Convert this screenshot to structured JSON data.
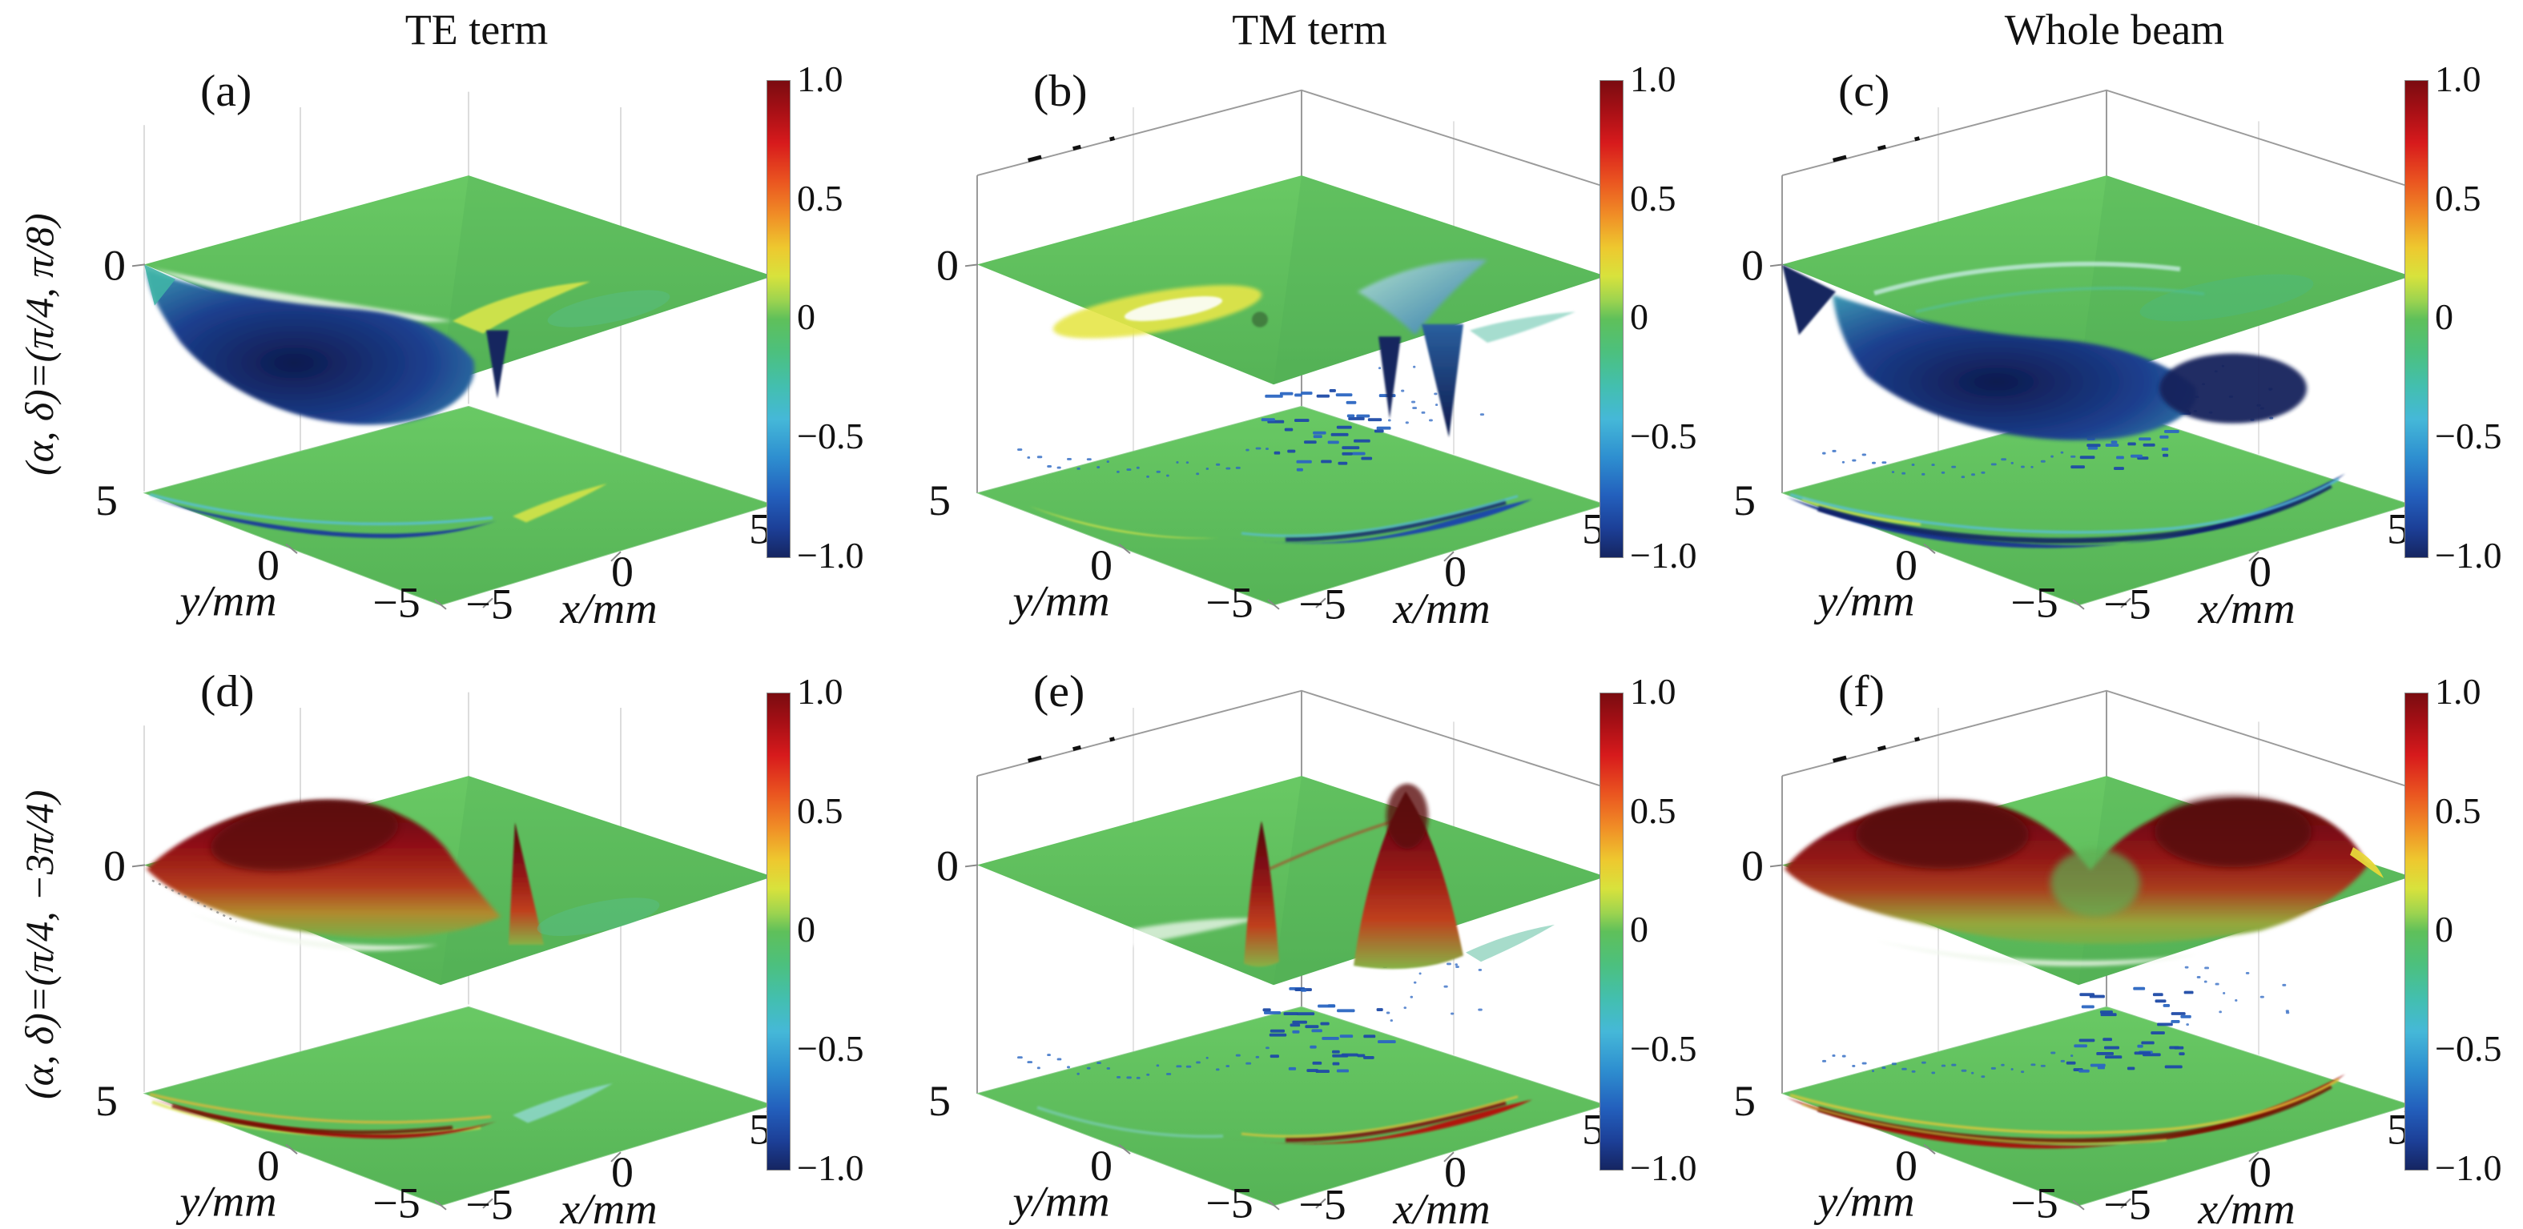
{
  "figure": {
    "column_titles": [
      "TE term",
      "TM term",
      "Whole beam"
    ],
    "row_labels": [
      "(α, δ)=(π/4, π/8)",
      "(α, δ)=(π/4, −3π/4)"
    ],
    "panel_letters": [
      "(a)",
      "(b)",
      "(c)",
      "(d)",
      "(e)",
      "(f)"
    ]
  },
  "axes": {
    "z_tick": "0",
    "y_ticks": [
      "5",
      "0",
      "−5"
    ],
    "x_ticks": [
      "−5",
      "0",
      "5"
    ],
    "y_label": "y/mm",
    "x_label": "x/mm",
    "colorbar_ticks": [
      "1.0",
      "0.5",
      "0",
      "−0.5",
      "−1.0"
    ]
  },
  "colors": {
    "surface_green": "#5fc05a",
    "negative_blue": "#16255e",
    "positive_red": "#8f1315",
    "quiver_blue": "#2b66c2",
    "colormap": "jet"
  },
  "chart_data": [
    {
      "panel": "(a)",
      "column": "TE term",
      "row_condition": "(α, δ)=(π/4, π/8)",
      "type": "3d-surface-with-projection",
      "x_axis": {
        "label": "x/mm",
        "range": [
          -5,
          5
        ],
        "ticks": [
          -5,
          0,
          5
        ]
      },
      "y_axis": {
        "label": "y/mm",
        "range": [
          -5,
          5
        ],
        "ticks": [
          5,
          0,
          -5
        ]
      },
      "z_tick": 0,
      "value_range": [
        -1,
        1
      ],
      "colorbar_ticks": [
        1.0,
        0.5,
        0,
        -0.5,
        -1.0
      ],
      "colormap": "jet",
      "surface_summary": "flat near 0 (green) with a broad negative lobe reaching about -1 (dark blue) over -4<x<0, a narrow negative spike near the origin, and a weak positive yellow ridge just right of center",
      "projection_summary": "narrow dark-blue negative crescent running from (x=-5, y=5) toward the origin; short yellow positive arc for x>0",
      "quiver_scatter": false
    },
    {
      "panel": "(b)",
      "column": "TM term",
      "row_condition": "(α, δ)=(π/4, π/8)",
      "type": "3d-surface-with-projection",
      "x_axis": {
        "label": "x/mm",
        "range": [
          -5,
          5
        ],
        "ticks": [
          -5,
          0,
          5
        ]
      },
      "y_axis": {
        "label": "y/mm",
        "range": [
          -5,
          5
        ],
        "ticks": [
          5,
          0,
          -5
        ]
      },
      "z_tick": 0,
      "value_range": [
        -1,
        1
      ],
      "colorbar_ticks": [
        1.0,
        0.5,
        0,
        -0.5,
        -1.0
      ],
      "colormap": "jet",
      "surface_summary": "flat near 0 with two sharp negative spikes reaching about -1 (dark blue) just right of center, a shallow blue trough arcing right, and a weak positive yellow glow left of center",
      "projection_summary": "dark-blue negative crescent right of center curving toward +x; weak yellow positive arc on the left",
      "quiver_scatter": true
    },
    {
      "panel": "(c)",
      "column": "Whole beam",
      "row_condition": "(α, δ)=(π/4, π/8)",
      "type": "3d-surface-with-projection",
      "x_axis": {
        "label": "x/mm",
        "range": [
          -5,
          5
        ],
        "ticks": [
          -5,
          0,
          5
        ]
      },
      "y_axis": {
        "label": "y/mm",
        "range": [
          -5,
          5
        ],
        "ticks": [
          5,
          0,
          -5
        ]
      },
      "z_tick": 0,
      "value_range": [
        -1,
        1
      ],
      "colorbar_ticks": [
        1.0,
        0.5,
        0,
        -0.5,
        -1.0
      ],
      "colormap": "jet",
      "surface_summary": "flat near 0 with one broad two-lobed negative bowl reaching about -1 (dark blue) across the center; shallow cyan valley arcs cross the surface",
      "projection_summary": "single long dark-blue negative crescent sweeping from (x=-5, y=5) across the plane toward x=5",
      "quiver_scatter": true
    },
    {
      "panel": "(d)",
      "column": "TE term",
      "row_condition": "(α, δ)=(π/4, −3π/4)",
      "type": "3d-surface-with-projection",
      "x_axis": {
        "label": "x/mm",
        "range": [
          -5,
          5
        ],
        "ticks": [
          -5,
          0,
          5
        ]
      },
      "y_axis": {
        "label": "y/mm",
        "range": [
          -5,
          5
        ],
        "ticks": [
          5,
          0,
          -5
        ]
      },
      "z_tick": 0,
      "value_range": [
        -1,
        1
      ],
      "colorbar_ticks": [
        1.0,
        0.5,
        0,
        -0.5,
        -1.0
      ],
      "colormap": "jet",
      "surface_summary": "flat near 0 with a broad positive dome reaching about +1 (dark red) over -4<x<0 and a narrow positive spike near the origin; weak cyan dip right of center",
      "projection_summary": "narrow dark-red positive crescent from (x=-5, y=5) to the origin with yellow fringes; weak cyan negative arc for x>0",
      "quiver_scatter": false
    },
    {
      "panel": "(e)",
      "column": "TM term",
      "row_condition": "(α, δ)=(π/4, −3π/4)",
      "type": "3d-surface-with-projection",
      "x_axis": {
        "label": "x/mm",
        "range": [
          -5,
          5
        ],
        "ticks": [
          -5,
          0,
          5
        ]
      },
      "y_axis": {
        "label": "y/mm",
        "range": [
          -5,
          5
        ],
        "ticks": [
          5,
          0,
          -5
        ]
      },
      "z_tick": 0,
      "value_range": [
        -1,
        1
      ],
      "colorbar_ticks": [
        1.0,
        0.5,
        0,
        -0.5,
        -1.0
      ],
      "colormap": "jet",
      "surface_summary": "flat near 0 with two sharp positive peaks reaching about +1 (dark red) just right of center (one narrow, one broad)",
      "projection_summary": "dark-red positive crescent right of center curving toward +x; weak cyan arc on the left",
      "quiver_scatter": true
    },
    {
      "panel": "(f)",
      "column": "Whole beam",
      "row_condition": "(α, δ)=(π/4, −3π/4)",
      "type": "3d-surface-with-projection",
      "x_axis": {
        "label": "x/mm",
        "range": [
          -5,
          5
        ],
        "ticks": [
          -5,
          0,
          5
        ]
      },
      "y_axis": {
        "label": "y/mm",
        "range": [
          -5,
          5
        ],
        "ticks": [
          5,
          0,
          -5
        ]
      },
      "z_tick": 0,
      "value_range": [
        -1,
        1
      ],
      "colorbar_ticks": [
        1.0,
        0.5,
        0,
        -0.5,
        -1.0
      ],
      "colormap": "jet",
      "surface_summary": "flat near 0 with two broad positive domes reaching about +1 (dark red) spanning the center, with a green valley between them and a yellow sliver at the right edge",
      "projection_summary": "single long dark-red positive crescent sweeping from (x=-5, y=5) across the plane toward x=5, with yellow fringes",
      "quiver_scatter": true
    }
  ]
}
